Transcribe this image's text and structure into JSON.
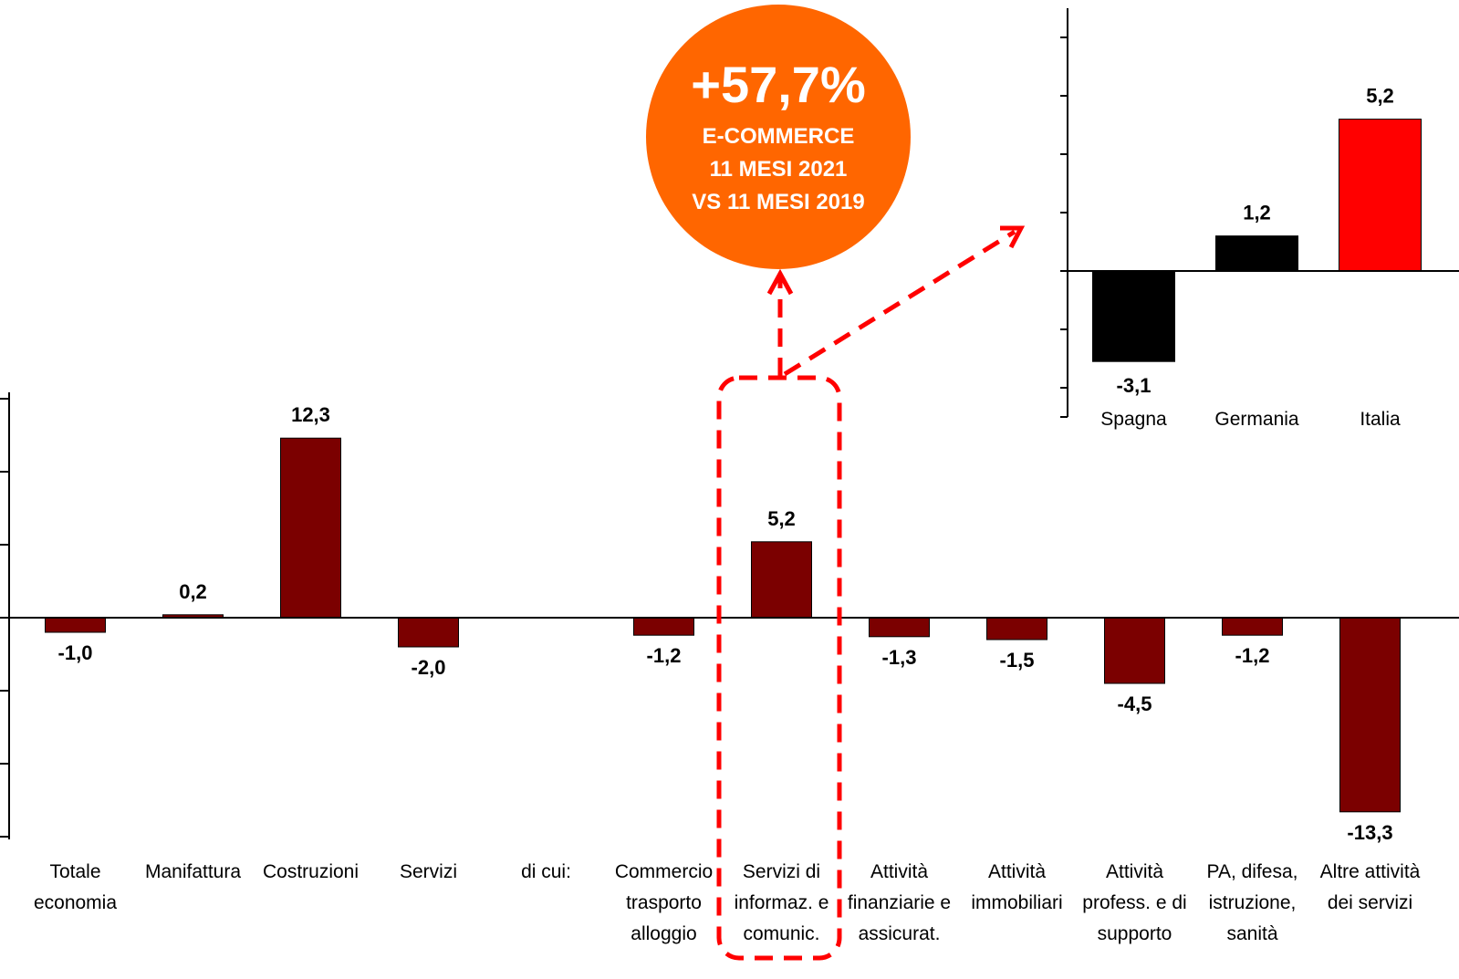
{
  "colors": {
    "main_bar": "#7B0000",
    "inset_bar_other": "#000000",
    "inset_bar_highlight": "#FF0000",
    "badge": "#FF6600",
    "highlight_dash": "#FF0000"
  },
  "badge": {
    "percent": "+57,7%",
    "line1": "E-COMMERCE",
    "line2": "11 MESI 2021",
    "line3": "VS 11 MESI 2019"
  },
  "chart_data": [
    {
      "type": "bar",
      "categories": [
        [
          "Totale",
          "economia"
        ],
        [
          "Manifattura"
        ],
        [
          "Costruzioni"
        ],
        [
          "Servizi"
        ],
        [
          "di cui:"
        ],
        [
          "Commercio",
          "trasporto",
          "alloggio"
        ],
        [
          "Servizi di",
          "informaz. e",
          "comunic."
        ],
        [
          "Attività",
          "finanziarie e",
          "assicurat."
        ],
        [
          "Attività",
          "immobiliari"
        ],
        [
          "Attività",
          "profess. e di",
          "supporto"
        ],
        [
          "PA, difesa,",
          "istruzione,",
          "sanità"
        ],
        [
          "Altre attività",
          "dei servizi"
        ]
      ],
      "values": [
        -1.0,
        0.2,
        12.3,
        -2.0,
        null,
        -1.2,
        5.2,
        -1.3,
        -1.5,
        -4.5,
        -1.2,
        -13.3
      ],
      "value_labels": [
        "-1,0",
        "0,2",
        "12,3",
        "-2,0",
        "",
        "-1,2",
        "5,2",
        "-1,3",
        "-1,5",
        "-4,5",
        "-1,2",
        "-13,3"
      ],
      "highlighted_category_index": 6,
      "ylim": [
        -15,
        15
      ],
      "grid": false,
      "title": "",
      "xlabel": "",
      "ylabel": ""
    },
    {
      "type": "bar",
      "categories": [
        "Spagna",
        "Germania",
        "Italia"
      ],
      "values": [
        -3.1,
        1.2,
        5.2
      ],
      "value_labels": [
        "-3,1",
        "1,2",
        "5,2"
      ],
      "highlighted_category_index": 2,
      "ylim": [
        -4,
        9
      ],
      "grid": false,
      "title": "",
      "xlabel": "",
      "ylabel": ""
    }
  ]
}
